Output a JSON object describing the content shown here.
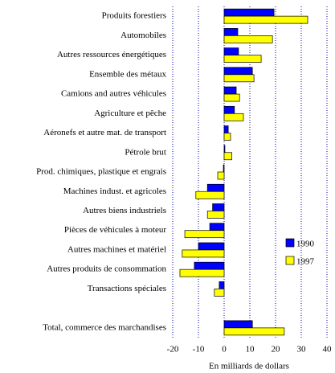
{
  "chart_data": {
    "type": "bar",
    "orientation": "horizontal",
    "xlabel": "En milliards de dollars",
    "categories": [
      "Produits forestiers",
      "Automobiles",
      "Autres ressources énergétiques",
      "Ensemble des métaux",
      "Camions and autres véhicules",
      "Agriculture et pêche",
      "Aéronefs et autre mat. de transport",
      "Pétrole brut",
      "Prod. chimiques, plastique et engrais",
      "Machines indust. et agricoles",
      "Autres biens industriels",
      "Pièces de véhicules à moteur",
      "Autres machines et matériel",
      "Autres produits de consommation",
      "Transactions spéciales",
      null,
      "Total, commerce des marchandises"
    ],
    "series": [
      {
        "name": "1990",
        "color": "#0000ff",
        "values": [
          19.4,
          5.3,
          5.6,
          11,
          4.7,
          4,
          1.6,
          0.3,
          -0.3,
          -6.5,
          -4.5,
          -5.6,
          -10,
          -11.6,
          -1.9,
          null,
          11
        ]
      },
      {
        "name": "1997",
        "color": "#ffff00",
        "values": [
          32.5,
          18.8,
          14.4,
          11.6,
          6,
          7.5,
          2.5,
          3,
          -2.5,
          -11,
          -6.5,
          -15.3,
          -16.3,
          -17.2,
          -3.8,
          null,
          23.4
        ]
      }
    ],
    "xlim": [
      -20,
      40
    ],
    "xticks": [
      -20,
      -10,
      0,
      10,
      20,
      30,
      40
    ],
    "grid": true,
    "legend": "right"
  }
}
